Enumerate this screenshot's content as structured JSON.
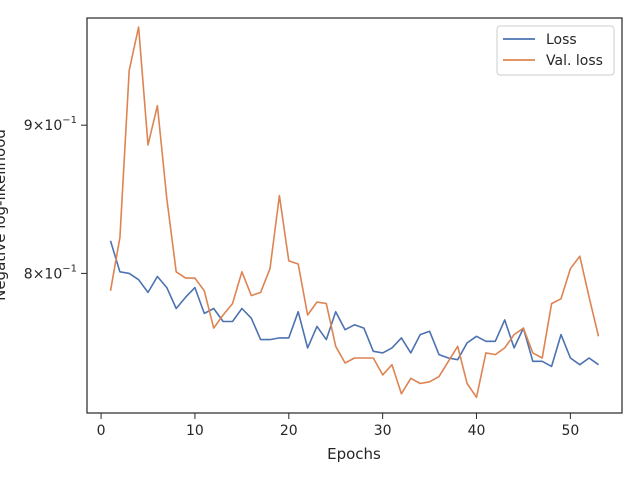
{
  "chart_data": {
    "type": "line",
    "xlabel": "Epochs",
    "ylabel": "Negative log-likelihood",
    "yscale": "log",
    "xlim": [
      -1.5,
      55.5
    ],
    "ylim": [
      0.716,
      0.98
    ],
    "xticks": [
      0,
      10,
      20,
      30,
      40,
      50
    ],
    "xtick_labels": [
      "0",
      "10",
      "20",
      "30",
      "40",
      "50"
    ],
    "yticks": [
      0.8,
      0.9
    ],
    "ytick_mantissas": [
      "8",
      "9"
    ],
    "ytick_base": "10",
    "ytick_exp": "−1",
    "grid": false,
    "legend": "top-right",
    "x": [
      1,
      2,
      3,
      4,
      5,
      6,
      7,
      8,
      9,
      10,
      11,
      12,
      13,
      14,
      15,
      16,
      17,
      18,
      19,
      20,
      21,
      22,
      23,
      24,
      25,
      26,
      27,
      28,
      29,
      30,
      31,
      32,
      33,
      34,
      35,
      36,
      37,
      38,
      39,
      40,
      41,
      42,
      43,
      44,
      45,
      46,
      47,
      48,
      49,
      50,
      51,
      52,
      53
    ],
    "series": [
      {
        "name": "Loss",
        "color": "#4c72b0",
        "values": [
          0.821,
          0.801,
          0.8,
          0.796,
          0.788,
          0.798,
          0.791,
          0.778,
          0.785,
          0.791,
          0.775,
          0.778,
          0.77,
          0.77,
          0.778,
          0.772,
          0.759,
          0.759,
          0.76,
          0.76,
          0.776,
          0.754,
          0.767,
          0.759,
          0.776,
          0.765,
          0.768,
          0.766,
          0.752,
          0.751,
          0.754,
          0.76,
          0.751,
          0.762,
          0.764,
          0.75,
          0.748,
          0.747,
          0.757,
          0.761,
          0.758,
          0.758,
          0.771,
          0.754,
          0.766,
          0.746,
          0.746,
          0.743,
          0.762,
          0.748,
          0.744,
          0.748,
          0.744
        ]
      },
      {
        "name": "Val. loss",
        "color": "#dd8452",
        "values": [
          0.789,
          0.823,
          0.94,
          0.973,
          0.886,
          0.914,
          0.849,
          0.801,
          0.797,
          0.797,
          0.789,
          0.766,
          0.774,
          0.781,
          0.801,
          0.786,
          0.788,
          0.803,
          0.851,
          0.808,
          0.806,
          0.774,
          0.782,
          0.781,
          0.755,
          0.745,
          0.748,
          0.748,
          0.748,
          0.738,
          0.744,
          0.727,
          0.736,
          0.733,
          0.734,
          0.737,
          0.746,
          0.755,
          0.733,
          0.725,
          0.751,
          0.75,
          0.754,
          0.762,
          0.766,
          0.751,
          0.748,
          0.781,
          0.784,
          0.803,
          0.811,
          0.785,
          0.761
        ]
      }
    ]
  }
}
